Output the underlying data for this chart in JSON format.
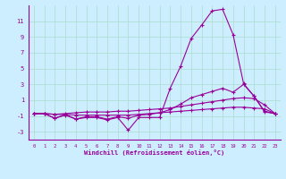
{
  "x": [
    0,
    1,
    2,
    3,
    4,
    5,
    6,
    7,
    8,
    9,
    10,
    11,
    12,
    13,
    14,
    15,
    16,
    17,
    18,
    19,
    20,
    21,
    22,
    23
  ],
  "line1": [
    -0.7,
    -0.7,
    -0.8,
    -0.8,
    -0.9,
    -0.9,
    -0.9,
    -0.9,
    -0.9,
    -0.9,
    -0.8,
    -0.7,
    -0.6,
    -0.5,
    -0.4,
    -0.3,
    -0.2,
    -0.1,
    0.0,
    0.1,
    0.1,
    0.0,
    -0.1,
    -0.7
  ],
  "line2": [
    -0.7,
    -0.7,
    -1.3,
    -0.9,
    -1.4,
    -1.2,
    -1.2,
    -1.5,
    -1.2,
    -2.8,
    -1.2,
    -1.2,
    -1.2,
    2.5,
    5.3,
    8.8,
    10.5,
    12.3,
    12.5,
    9.3,
    3.1,
    1.5,
    -0.5,
    -0.7
  ],
  "line3": [
    -0.7,
    -0.7,
    -1.3,
    -0.8,
    -1.4,
    -1.1,
    -1.1,
    -1.4,
    -1.1,
    -1.3,
    -0.9,
    -0.8,
    -0.6,
    -0.2,
    0.5,
    1.3,
    1.7,
    2.1,
    2.5,
    2.0,
    3.0,
    1.5,
    -0.4,
    -0.7
  ],
  "line4": [
    -0.7,
    -0.7,
    -0.8,
    -0.7,
    -0.6,
    -0.5,
    -0.5,
    -0.5,
    -0.4,
    -0.4,
    -0.3,
    -0.2,
    -0.1,
    0.0,
    0.2,
    0.4,
    0.6,
    0.8,
    1.0,
    1.2,
    1.3,
    1.2,
    0.4,
    -0.7
  ],
  "color": "#990099",
  "bg_color": "#cceeff",
  "grid_color": "#aaddcc",
  "xlabel": "Windchill (Refroidissement éolien,°C)",
  "yticks": [
    -3,
    -1,
    1,
    3,
    5,
    7,
    9,
    11
  ],
  "xticks": [
    0,
    1,
    2,
    3,
    4,
    5,
    6,
    7,
    8,
    9,
    10,
    11,
    12,
    13,
    14,
    15,
    16,
    17,
    18,
    19,
    20,
    21,
    22,
    23
  ],
  "ylim": [
    -4,
    13
  ],
  "xlim": [
    -0.5,
    23.5
  ]
}
